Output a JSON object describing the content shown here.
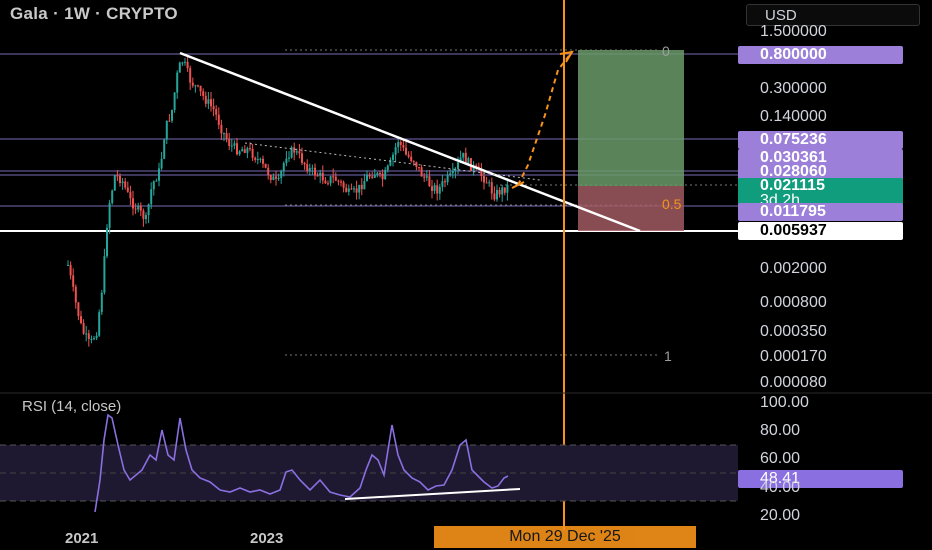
{
  "header": {
    "title": "Gala · 1W · CRYPTO",
    "currency": "USD"
  },
  "price_axis": {
    "labels": [
      "1.500000",
      "0.300000",
      "0.140000",
      "0.002000",
      "0.000800",
      "0.000350",
      "0.000170",
      "0.000080"
    ],
    "highlights": [
      {
        "value": "0.800000",
        "bg": "#9b7fd9",
        "fg": "#ffffff"
      },
      {
        "value": "0.075236",
        "bg": "#9b7fd9",
        "fg": "#ffffff"
      },
      {
        "value": "0.030361",
        "bg": "#9b7fd9",
        "fg": "#ffffff"
      },
      {
        "value": "0.028060",
        "bg": "#9b7fd9",
        "fg": "#ffffff"
      },
      {
        "value": "0.011795",
        "bg": "#9b7fd9",
        "fg": "#ffffff"
      },
      {
        "value": "0.005937",
        "bg": "#ffffff",
        "fg": "#000000"
      }
    ],
    "current": {
      "price": "0.021115",
      "countdown": "3d 2h",
      "bg": "#0f9d7e"
    }
  },
  "rsi": {
    "label": "RSI (14, close)",
    "axis_labels": [
      "100.00",
      "80.00",
      "60.00",
      "40.00",
      "20.00"
    ],
    "value": "48.41"
  },
  "time_axis": {
    "labels": [
      "2021",
      "2023"
    ],
    "crosshair_date": "Mon 29 Dec '25"
  },
  "fib_labels": {
    "top": "0",
    "mid": "0.5",
    "bottom": "1"
  },
  "colors": {
    "purple": "#9b7fd9",
    "orange": "#f7931a",
    "up": "#26a69a",
    "down": "#ef5350",
    "target_green": "#6a9a6a",
    "stop_red": "#a05a60"
  }
}
